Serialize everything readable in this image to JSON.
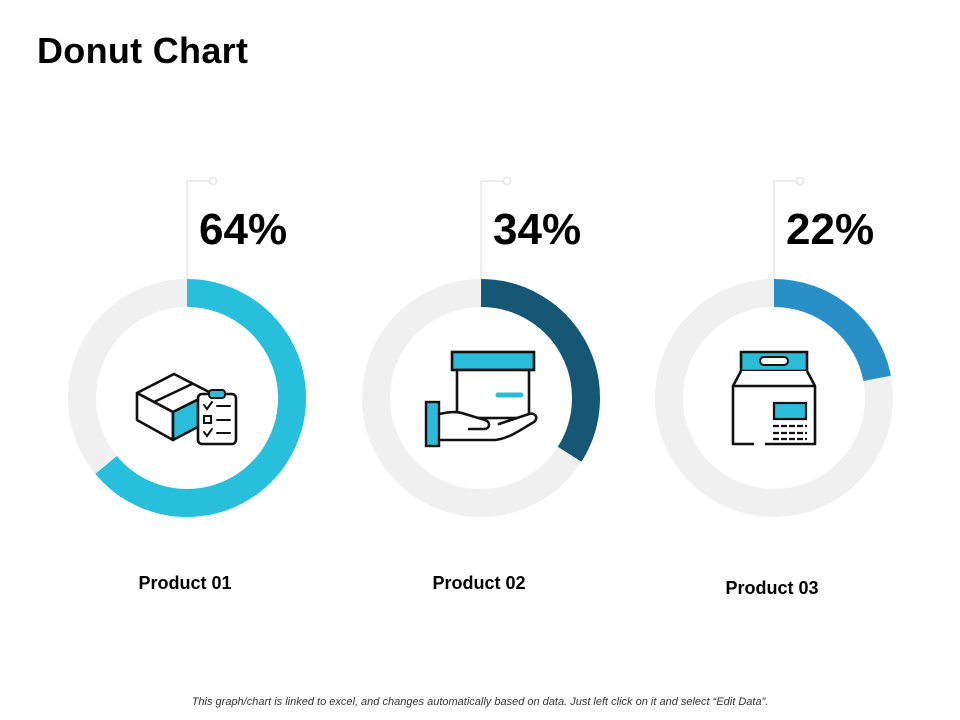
{
  "title": "Donut Chart",
  "footer_note": "This graph/chart is linked to excel, and changes automatically based on data. Just left click on it and select “Edit Data”.",
  "colors": {
    "track": "#f0f0f0",
    "connector": "#e6e6e6",
    "icon_accent": "#2bbcd8"
  },
  "chart_data": {
    "type": "pie",
    "variant": "donut",
    "title": "Donut Chart",
    "series": [
      {
        "name": "Product 01",
        "value": 64,
        "value_label": "64%",
        "color": "#28bfdc",
        "icon": "box-with-checklist-icon"
      },
      {
        "name": "Product 02",
        "value": 34,
        "value_label": "34%",
        "color": "#165776",
        "icon": "hand-holding-box-icon"
      },
      {
        "name": "Product 03",
        "value": 22,
        "value_label": "22%",
        "color": "#2890c7",
        "icon": "paper-bag-icon"
      }
    ],
    "max_value": 100
  }
}
